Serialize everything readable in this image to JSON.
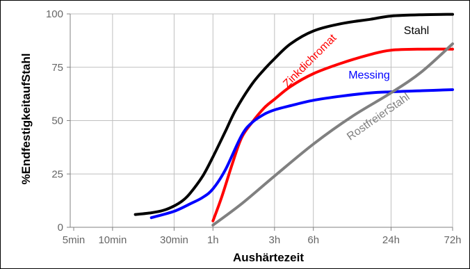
{
  "chart_data": {
    "type": "line",
    "xlabel": "Aushärtezeit",
    "ylabel": "%EndfestigkeitaufStahl",
    "x_scale": "log",
    "x_ticks": [
      {
        "label": "5min",
        "minutes": 5
      },
      {
        "label": "10min",
        "minutes": 10
      },
      {
        "label": "30min",
        "minutes": 30
      },
      {
        "label": "1h",
        "minutes": 60
      },
      {
        "label": "3h",
        "minutes": 180
      },
      {
        "label": "6h",
        "minutes": 360
      },
      {
        "label": "24h",
        "minutes": 1440
      },
      {
        "label": "72h",
        "minutes": 4320
      }
    ],
    "y_ticks": [
      0,
      25,
      50,
      75,
      100
    ],
    "ylim": [
      0,
      100
    ],
    "grid": true,
    "series": [
      {
        "name": "Stahl",
        "color": "#000000",
        "points": [
          [
            15,
            6
          ],
          [
            20,
            6.8
          ],
          [
            25,
            8
          ],
          [
            30,
            10
          ],
          [
            35,
            12.5
          ],
          [
            40,
            16
          ],
          [
            50,
            24
          ],
          [
            60,
            33
          ],
          [
            75,
            45
          ],
          [
            90,
            55
          ],
          [
            120,
            67
          ],
          [
            150,
            74
          ],
          [
            180,
            79
          ],
          [
            240,
            86
          ],
          [
            360,
            92
          ],
          [
            600,
            95.5
          ],
          [
            1000,
            97.5
          ],
          [
            1440,
            99
          ],
          [
            2500,
            99.6
          ],
          [
            4320,
            99.8
          ]
        ]
      },
      {
        "name": "Zinkdichromat",
        "color": "#ff0000",
        "points": [
          [
            60,
            3
          ],
          [
            70,
            14
          ],
          [
            85,
            30
          ],
          [
            100,
            42
          ],
          [
            120,
            49
          ],
          [
            150,
            56
          ],
          [
            180,
            60
          ],
          [
            240,
            66
          ],
          [
            360,
            72
          ],
          [
            600,
            77
          ],
          [
            1000,
            81
          ],
          [
            1440,
            83
          ],
          [
            2500,
            83.5
          ],
          [
            4320,
            83.5
          ]
        ]
      },
      {
        "name": "Messing",
        "color": "#0000ff",
        "points": [
          [
            20,
            4.5
          ],
          [
            30,
            7.5
          ],
          [
            40,
            11
          ],
          [
            50,
            14
          ],
          [
            60,
            18
          ],
          [
            75,
            27
          ],
          [
            100,
            43
          ],
          [
            120,
            49
          ],
          [
            150,
            53
          ],
          [
            180,
            55
          ],
          [
            240,
            57
          ],
          [
            360,
            59.5
          ],
          [
            600,
            61.5
          ],
          [
            1000,
            63
          ],
          [
            1440,
            63.5
          ],
          [
            2500,
            64
          ],
          [
            4320,
            64.5
          ]
        ]
      },
      {
        "name": "RostfreierStahl",
        "color": "#808080",
        "points": [
          [
            60,
            1
          ],
          [
            100,
            11
          ],
          [
            180,
            24
          ],
          [
            360,
            39
          ],
          [
            720,
            52
          ],
          [
            1440,
            63
          ],
          [
            2500,
            73
          ],
          [
            4320,
            86
          ]
        ]
      }
    ]
  }
}
